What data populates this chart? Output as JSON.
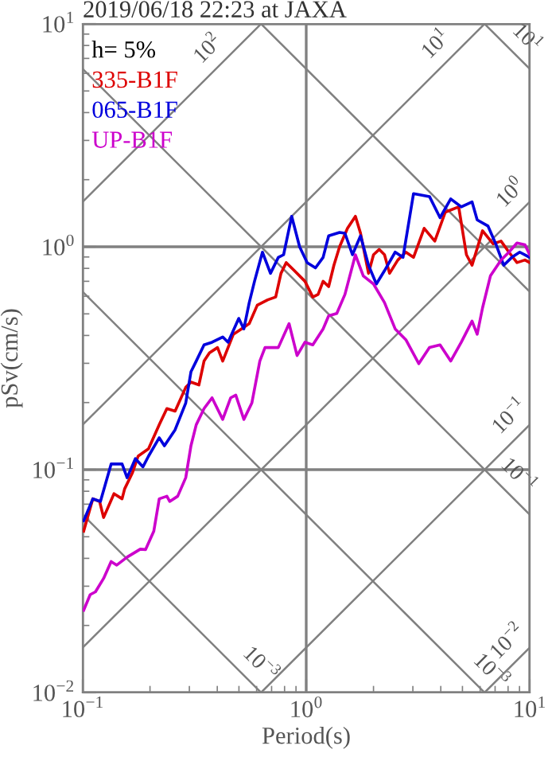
{
  "chart_data": {
    "type": "line",
    "title": "2019/06/18 22:23 at JAXA",
    "xlabel": "Period(s)",
    "ylabel": "pSv(cm/s)",
    "log": "xy",
    "grid": true,
    "legend": "top left",
    "xlim": [
      0.1,
      10
    ],
    "ylim": [
      0.01,
      10
    ],
    "xticks": [
      {
        "value": 0.1,
        "label": "10$^{−1}$"
      },
      {
        "value": 1,
        "label": "10$^{0}$"
      },
      {
        "value": 10,
        "label": "10$^{1}$"
      }
    ],
    "yticks": [
      {
        "value": 0.01,
        "label": "10$^{−2}$"
      },
      {
        "value": 0.1,
        "label": "10$^{−1}$"
      },
      {
        "value": 1,
        "label": "10$^{0}$"
      },
      {
        "value": 10,
        "label": "10$^{1}$"
      }
    ],
    "annotations": [
      "h= 5%",
      {
        "text": "10$^{2}$",
        "x": 0.42,
        "y": 6.68
      },
      {
        "text": "10$^{1}$",
        "x": 4.4,
        "y": 7.0
      },
      {
        "text": "10$^{1}$",
        "x": 8.4,
        "y": 7.48
      },
      {
        "text": "10$^{0}$",
        "x": 9.5,
        "y": 1.51
      },
      {
        "text": "10$^{−1}$",
        "x": 9.4,
        "y": 0.15
      },
      {
        "text": "10$^{−1}$",
        "x": 7.7,
        "y": 0.0816
      },
      {
        "text": "10$^{−2}$",
        "x": 9.2,
        "y": 0.01464
      },
      {
        "text": "10$^{−3}$",
        "x": 5.8,
        "y": 0.01083
      },
      {
        "text": "10$^{−3}$",
        "x": 0.54,
        "y": 0.01163
      }
    ],
    "series": [
      {
        "color": "#808080",
        "x": [
          0.1,
          0.628
        ],
        "values": [
          1.59,
          10
        ]
      },
      {
        "color": "#808080",
        "x": [
          0.1,
          6.28
        ],
        "values": [
          0.159,
          10
        ]
      },
      {
        "color": "#808080",
        "x": [
          0.1,
          10
        ],
        "values": [
          0.0159,
          1.59
        ]
      },
      {
        "color": "#808080",
        "x": [
          0.628,
          10
        ],
        "values": [
          0.01,
          0.159
        ]
      },
      {
        "color": "#808080",
        "x": [
          6.28,
          10
        ],
        "values": [
          0.01,
          0.0159
        ]
      },
      {
        "color": "#808080",
        "x": [
          6.28,
          10
        ],
        "values": [
          10,
          6.28
        ]
      },
      {
        "color": "#808080",
        "x": [
          0.628,
          10
        ],
        "values": [
          10,
          0.628
        ]
      },
      {
        "color": "#808080",
        "x": [
          0.1,
          10
        ],
        "values": [
          6.28,
          0.0628
        ]
      },
      {
        "color": "#808080",
        "x": [
          0.1,
          6.28
        ],
        "values": [
          0.628,
          0.01
        ]
      },
      {
        "color": "#808080",
        "x": [
          0.1,
          0.628
        ],
        "values": [
          0.0628,
          0.01
        ]
      },
      {
        "name": "335-B1F",
        "color": "#dd0000",
        "x": [
          0.101,
          0.111,
          0.119,
          0.124,
          0.138,
          0.15,
          0.154,
          0.167,
          0.177,
          0.197,
          0.22,
          0.238,
          0.259,
          0.289,
          0.305,
          0.331,
          0.349,
          0.369,
          0.401,
          0.423,
          0.472,
          0.513,
          0.556,
          0.604,
          0.673,
          0.73,
          0.771,
          0.814,
          0.885,
          0.987,
          1.07,
          1.13,
          1.19,
          1.26,
          1.33,
          1.41,
          1.53,
          1.66,
          1.75,
          1.9,
          2.0,
          2.12,
          2.24,
          2.36,
          2.57,
          2.79,
          3.02,
          3.37,
          3.76,
          4.19,
          4.81,
          5.21,
          5.52,
          6.15,
          6.86,
          7.44,
          8.07,
          8.77,
          9.52,
          10
        ],
        "values": [
          0.053,
          0.074,
          0.072,
          0.061,
          0.078,
          0.074,
          0.082,
          0.097,
          0.115,
          0.124,
          0.159,
          0.188,
          0.183,
          0.234,
          0.247,
          0.24,
          0.307,
          0.334,
          0.353,
          0.307,
          0.405,
          0.428,
          0.452,
          0.547,
          0.578,
          0.595,
          0.76,
          0.849,
          0.781,
          0.7,
          0.595,
          0.611,
          0.7,
          0.663,
          0.826,
          1.0,
          1.21,
          1.37,
          1.15,
          0.76,
          0.921,
          0.973,
          0.921,
          0.76,
          0.872,
          0.946,
          0.896,
          1.21,
          1.06,
          1.43,
          1.51,
          0.921,
          0.826,
          1.18,
          1.03,
          1.06,
          0.946,
          0.849,
          0.872,
          0.849
        ]
      },
      {
        "name": "065-B1F",
        "color": "#0000dd",
        "x": [
          0.101,
          0.111,
          0.12,
          0.134,
          0.15,
          0.158,
          0.172,
          0.186,
          0.197,
          0.22,
          0.232,
          0.259,
          0.289,
          0.305,
          0.322,
          0.349,
          0.379,
          0.423,
          0.447,
          0.499,
          0.526,
          0.556,
          0.587,
          0.637,
          0.692,
          0.75,
          0.792,
          0.861,
          0.934,
          1.01,
          1.1,
          1.19,
          1.26,
          1.41,
          1.49,
          1.61,
          1.75,
          1.9,
          2.06,
          2.24,
          2.5,
          2.71,
          3.02,
          3.56,
          3.97,
          4.43,
          4.94,
          5.52,
          5.82,
          6.5,
          7.05,
          7.65,
          8.31,
          9.02,
          10
        ],
        "values": [
          0.059,
          0.074,
          0.072,
          0.106,
          0.106,
          0.092,
          0.112,
          0.103,
          0.115,
          0.139,
          0.128,
          0.151,
          0.199,
          0.275,
          0.307,
          0.363,
          0.373,
          0.394,
          0.373,
          0.477,
          0.428,
          0.562,
          0.7,
          0.946,
          0.76,
          0.896,
          0.921,
          1.37,
          1.0,
          0.849,
          0.804,
          0.896,
          1.12,
          1.16,
          1.15,
          0.921,
          1.12,
          0.826,
          0.681,
          0.781,
          0.946,
          0.896,
          1.73,
          1.68,
          1.35,
          1.64,
          1.51,
          1.59,
          1.32,
          1.24,
          1.03,
          0.826,
          0.896,
          0.946,
          0.896
        ]
      },
      {
        "name": "UP-B1F",
        "color": "#cc00cc",
        "x": [
          0.101,
          0.108,
          0.114,
          0.124,
          0.134,
          0.142,
          0.158,
          0.181,
          0.191,
          0.208,
          0.22,
          0.238,
          0.245,
          0.266,
          0.289,
          0.305,
          0.322,
          0.349,
          0.379,
          0.423,
          0.459,
          0.484,
          0.526,
          0.571,
          0.62,
          0.654,
          0.75,
          0.838,
          0.91,
          0.987,
          1.07,
          1.19,
          1.26,
          1.37,
          1.49,
          1.66,
          1.8,
          2.0,
          2.24,
          2.5,
          2.79,
          3.19,
          3.56,
          3.97,
          4.43,
          4.94,
          5.52,
          5.82,
          6.15,
          6.67,
          7.44,
          8.07,
          8.77,
          9.52,
          10
        ],
        "values": [
          0.0234,
          0.0275,
          0.0283,
          0.0325,
          0.0387,
          0.0373,
          0.0405,
          0.044,
          0.0438,
          0.053,
          0.074,
          0.076,
          0.072,
          0.076,
          0.092,
          0.128,
          0.159,
          0.188,
          0.21,
          0.168,
          0.21,
          0.216,
          0.168,
          0.199,
          0.307,
          0.353,
          0.353,
          0.452,
          0.325,
          0.373,
          0.363,
          0.428,
          0.49,
          0.502,
          0.611,
          0.921,
          0.74,
          0.681,
          0.562,
          0.428,
          0.383,
          0.299,
          0.353,
          0.363,
          0.307,
          0.373,
          0.464,
          0.405,
          0.532,
          0.74,
          0.872,
          0.946,
          1.04,
          1.02,
          0.921
        ]
      }
    ]
  }
}
